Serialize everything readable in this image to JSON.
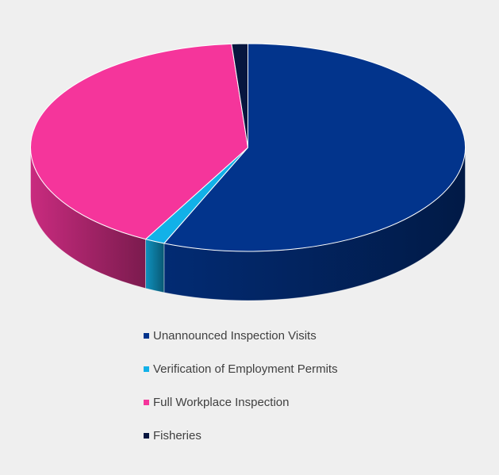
{
  "chart_data": {
    "type": "pie",
    "style": "3d",
    "title": "",
    "legend_position": "bottom",
    "categories": [
      "Unannounced Inspection Visits",
      "Verification of Employment Permits",
      "Full Workplace Inspection",
      "Fisheries"
    ],
    "values": [
      56.3,
      1.5,
      41.0,
      1.2
    ],
    "unit": "percent",
    "colors": [
      "#02348c",
      "#12b1e8",
      "#f5359b",
      "#07163f"
    ],
    "legend": [
      {
        "label": "Unannounced Inspection Visits",
        "color": "#02348c"
      },
      {
        "label": "Verification of Employment Permits",
        "color": "#12b1e8"
      },
      {
        "label": "Full Workplace Inspection",
        "color": "#f5359b"
      },
      {
        "label": "Fisheries",
        "color": "#07163f"
      }
    ]
  }
}
